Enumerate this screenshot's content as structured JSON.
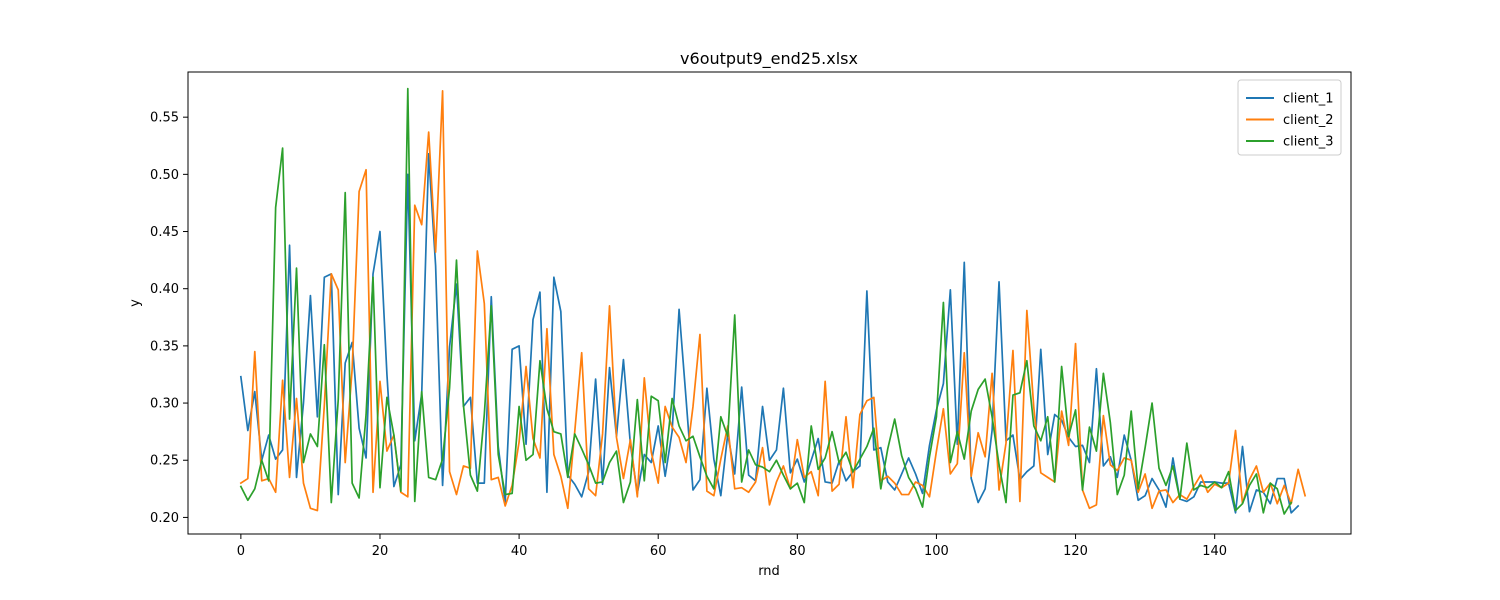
{
  "chart_data": {
    "type": "line",
    "title": "v6output9_end25.xlsx",
    "xlabel": "rnd",
    "ylabel": "y",
    "xlim": [
      -7.6,
      159.6
    ],
    "ylim": [
      0.1855,
      0.5895
    ],
    "xticks": [
      0,
      20,
      40,
      60,
      80,
      100,
      120,
      140
    ],
    "yticks": [
      0.2,
      0.25,
      0.3,
      0.35,
      0.4,
      0.45,
      0.5,
      0.55
    ],
    "ytick_labels": [
      "0.20",
      "0.25",
      "0.30",
      "0.35",
      "0.40",
      "0.45",
      "0.50",
      "0.55"
    ],
    "grid": false,
    "legend_position": "top-right",
    "series": [
      {
        "name": "client_1",
        "color": "#1f77b4",
        "values": [
          0.323,
          0.276,
          0.31,
          0.25,
          0.272,
          0.251,
          0.259,
          0.438,
          0.235,
          0.3,
          0.394,
          0.288,
          0.41,
          0.413,
          0.22,
          0.335,
          0.353,
          0.278,
          0.252,
          0.413,
          0.45,
          0.325,
          0.227,
          0.246,
          0.5,
          0.267,
          0.308,
          0.518,
          0.42,
          0.228,
          0.349,
          0.404,
          0.297,
          0.305,
          0.23,
          0.23,
          0.393,
          0.262,
          0.213,
          0.347,
          0.35,
          0.264,
          0.373,
          0.397,
          0.222,
          0.41,
          0.38,
          0.237,
          0.229,
          0.218,
          0.24,
          0.321,
          0.229,
          0.331,
          0.271,
          0.338,
          0.264,
          0.221,
          0.255,
          0.248,
          0.28,
          0.236,
          0.275,
          0.382,
          0.304,
          0.224,
          0.233,
          0.313,
          0.251,
          0.219,
          0.273,
          0.238,
          0.314,
          0.237,
          0.232,
          0.297,
          0.25,
          0.259,
          0.313,
          0.239,
          0.251,
          0.231,
          0.25,
          0.269,
          0.231,
          0.23,
          0.249,
          0.232,
          0.24,
          0.245,
          0.398,
          0.259,
          0.261,
          0.231,
          0.224,
          0.238,
          0.252,
          0.238,
          0.221,
          0.263,
          0.294,
          0.317,
          0.399,
          0.264,
          0.423,
          0.234,
          0.213,
          0.225,
          0.276,
          0.406,
          0.267,
          0.272,
          0.233,
          0.24,
          0.245,
          0.347,
          0.255,
          0.29,
          0.285,
          0.27,
          0.262,
          0.263,
          0.248,
          0.33,
          0.245,
          0.253,
          0.235,
          0.272,
          0.25,
          0.215,
          0.219,
          0.234,
          0.224,
          0.209,
          0.252,
          0.216,
          0.214,
          0.218,
          0.231,
          0.231,
          0.231,
          0.23,
          0.23,
          0.204,
          0.262,
          0.205,
          0.224,
          0.222,
          0.212,
          0.234,
          0.234,
          0.204,
          0.21
        ]
      },
      {
        "name": "client_2",
        "color": "#ff7f0e",
        "values": [
          0.23,
          0.234,
          0.345,
          0.232,
          0.234,
          0.222,
          0.32,
          0.235,
          0.304,
          0.23,
          0.208,
          0.206,
          0.298,
          0.413,
          0.399,
          0.248,
          0.33,
          0.485,
          0.504,
          0.222,
          0.319,
          0.258,
          0.272,
          0.222,
          0.218,
          0.473,
          0.456,
          0.537,
          0.432,
          0.573,
          0.24,
          0.22,
          0.245,
          0.243,
          0.433,
          0.387,
          0.233,
          0.235,
          0.21,
          0.228,
          0.266,
          0.332,
          0.269,
          0.252,
          0.365,
          0.255,
          0.236,
          0.208,
          0.275,
          0.344,
          0.225,
          0.219,
          0.273,
          0.385,
          0.27,
          0.234,
          0.268,
          0.218,
          0.322,
          0.257,
          0.23,
          0.297,
          0.279,
          0.27,
          0.248,
          0.297,
          0.36,
          0.223,
          0.219,
          0.251,
          0.28,
          0.225,
          0.226,
          0.222,
          0.231,
          0.261,
          0.211,
          0.231,
          0.245,
          0.225,
          0.268,
          0.235,
          0.24,
          0.219,
          0.319,
          0.223,
          0.229,
          0.288,
          0.226,
          0.29,
          0.302,
          0.305,
          0.232,
          0.236,
          0.23,
          0.22,
          0.22,
          0.231,
          0.228,
          0.218,
          0.258,
          0.295,
          0.238,
          0.247,
          0.344,
          0.236,
          0.274,
          0.253,
          0.326,
          0.224,
          0.265,
          0.346,
          0.214,
          0.381,
          0.296,
          0.239,
          0.235,
          0.231,
          0.293,
          0.263,
          0.352,
          0.224,
          0.208,
          0.211,
          0.289,
          0.246,
          0.241,
          0.252,
          0.25,
          0.222,
          0.238,
          0.208,
          0.223,
          0.224,
          0.213,
          0.22,
          0.216,
          0.227,
          0.237,
          0.222,
          0.229,
          0.226,
          0.23,
          0.276,
          0.212,
          0.233,
          0.245,
          0.222,
          0.23,
          0.212,
          0.228,
          0.212,
          0.242,
          0.219
        ]
      },
      {
        "name": "client_3",
        "color": "#2ca02c",
        "values": [
          0.227,
          0.215,
          0.225,
          0.25,
          0.232,
          0.471,
          0.523,
          0.286,
          0.418,
          0.248,
          0.273,
          0.262,
          0.351,
          0.213,
          0.303,
          0.484,
          0.23,
          0.217,
          0.29,
          0.41,
          0.226,
          0.305,
          0.272,
          0.223,
          0.575,
          0.214,
          0.31,
          0.235,
          0.233,
          0.251,
          0.313,
          0.425,
          0.298,
          0.237,
          0.223,
          0.29,
          0.385,
          0.255,
          0.22,
          0.221,
          0.297,
          0.25,
          0.255,
          0.337,
          0.295,
          0.275,
          0.273,
          0.235,
          0.273,
          0.26,
          0.246,
          0.23,
          0.231,
          0.248,
          0.258,
          0.213,
          0.231,
          0.303,
          0.232,
          0.306,
          0.302,
          0.248,
          0.304,
          0.28,
          0.267,
          0.271,
          0.253,
          0.236,
          0.225,
          0.288,
          0.271,
          0.377,
          0.231,
          0.259,
          0.246,
          0.244,
          0.24,
          0.25,
          0.237,
          0.225,
          0.23,
          0.213,
          0.28,
          0.242,
          0.252,
          0.275,
          0.248,
          0.257,
          0.24,
          0.251,
          0.262,
          0.278,
          0.225,
          0.26,
          0.286,
          0.254,
          0.235,
          0.225,
          0.209,
          0.253,
          0.288,
          0.388,
          0.248,
          0.275,
          0.251,
          0.293,
          0.312,
          0.321,
          0.288,
          0.246,
          0.213,
          0.307,
          0.309,
          0.337,
          0.28,
          0.267,
          0.288,
          0.231,
          0.332,
          0.271,
          0.294,
          0.224,
          0.279,
          0.258,
          0.326,
          0.283,
          0.22,
          0.237,
          0.293,
          0.225,
          0.261,
          0.3,
          0.243,
          0.228,
          0.245,
          0.216,
          0.265,
          0.224,
          0.228,
          0.226,
          0.231,
          0.226,
          0.24,
          0.206,
          0.212,
          0.228,
          0.238,
          0.204,
          0.23,
          0.225,
          0.203,
          0.213
        ]
      }
    ]
  }
}
